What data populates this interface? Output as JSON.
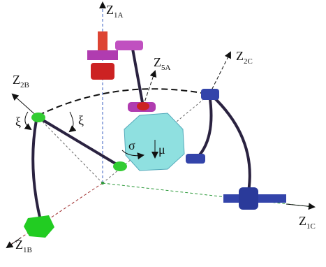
{
  "axes": [
    {
      "main": "Z",
      "sub": "1A"
    },
    {
      "main": "Z",
      "sub": "5A"
    },
    {
      "main": "Z",
      "sub": "2C"
    },
    {
      "main": "Z",
      "sub": "2B"
    },
    {
      "main": "Z",
      "sub": "1C"
    },
    {
      "main": "Z",
      "sub": "1B"
    }
  ],
  "angles": [
    "ξ",
    "ξ",
    "σ",
    "μ"
  ]
}
